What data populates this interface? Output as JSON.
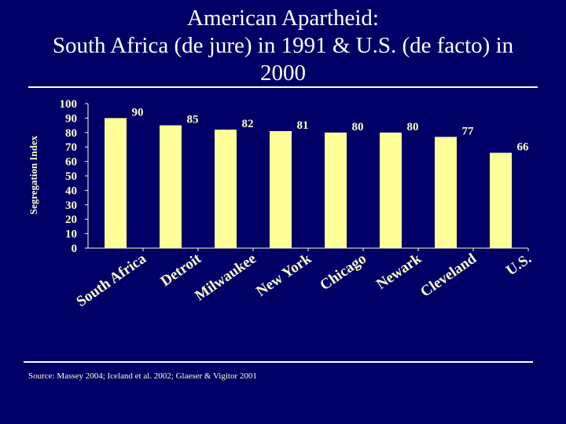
{
  "title_lines": [
    "American Apartheid:",
    "South Africa (de jure) in 1991 & U.S. (de facto) in",
    "2000"
  ],
  "source": "Source: Massey 2004; Iceland et al. 2002; Glaeser & Vigitor 2001",
  "colors": {
    "background": "#000066",
    "bar": "#ffff99",
    "text": "#ffffcc",
    "title": "#ffffff"
  },
  "chart_data": {
    "type": "bar",
    "title": "American Apartheid: South Africa (de jure) in 1991 & U.S. (de facto) in 2000",
    "xlabel": "",
    "ylabel": "Segregation Index",
    "categories": [
      "South Africa",
      "Detroit",
      "Milwaukee",
      "New York",
      "Chicago",
      "Newark",
      "Cleveland",
      "U.S."
    ],
    "values": [
      90,
      85,
      82,
      81,
      80,
      80,
      77,
      66
    ],
    "data_labels": [
      "90",
      "85",
      "82",
      "81",
      "80",
      "80",
      "77",
      "66"
    ],
    "ylim": [
      0,
      100
    ],
    "yticks": [
      "0",
      "10",
      "20",
      "30",
      "40",
      "50",
      "60",
      "70",
      "80",
      "90",
      "100"
    ],
    "grid": false,
    "legend": "none"
  }
}
